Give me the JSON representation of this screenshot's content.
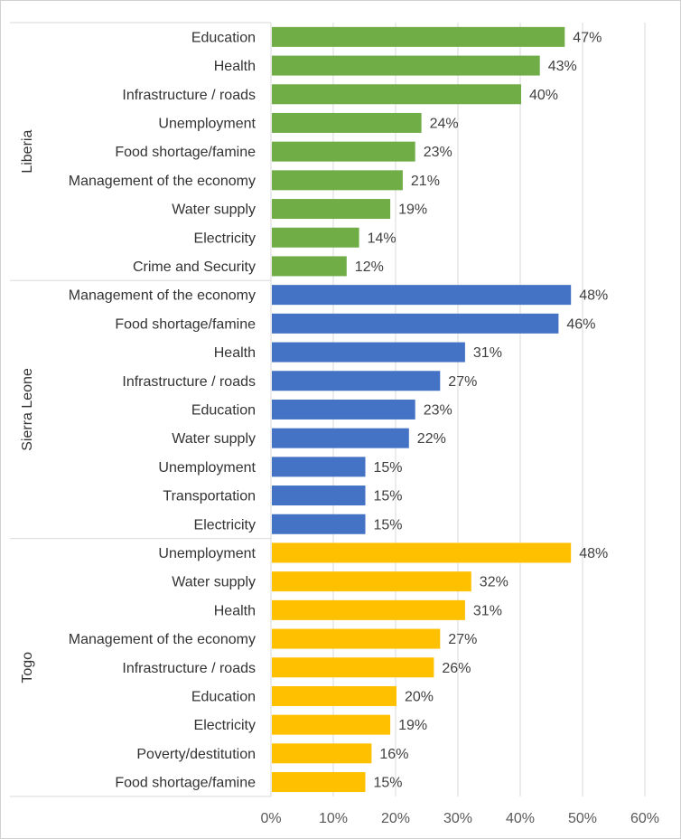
{
  "chart_data": {
    "type": "bar",
    "orientation": "horizontal",
    "xlim": [
      0,
      60
    ],
    "x_ticks": [
      "0%",
      "10%",
      "20%",
      "30%",
      "40%",
      "50%",
      "60%"
    ],
    "grid": "vertical",
    "value_suffix": "%",
    "groups": [
      {
        "name": "Liberia",
        "color": "#70AD47",
        "categories": [
          "Education",
          "Health",
          "Infrastructure / roads",
          "Unemployment",
          "Food shortage/famine",
          "Management of the economy",
          "Water supply",
          "Electricity",
          "Crime and Security"
        ],
        "values": [
          47,
          43,
          40,
          24,
          23,
          21,
          19,
          14,
          12
        ]
      },
      {
        "name": "Sierra Leone",
        "color": "#4472C4",
        "categories": [
          "Management of the economy",
          "Food shortage/famine",
          "Health",
          "Infrastructure / roads",
          "Education",
          "Water supply",
          "Unemployment",
          "Transportation",
          "Electricity"
        ],
        "values": [
          48,
          46,
          31,
          27,
          23,
          22,
          15,
          15,
          15
        ]
      },
      {
        "name": "Togo",
        "color": "#FFC000",
        "categories": [
          "Unemployment",
          "Water supply",
          "Health",
          "Management of the economy",
          "Infrastructure / roads",
          "Education",
          "Electricity",
          "Poverty/destitution",
          "Food shortage/famine"
        ],
        "values": [
          48,
          32,
          31,
          27,
          26,
          20,
          19,
          16,
          15
        ]
      }
    ]
  }
}
